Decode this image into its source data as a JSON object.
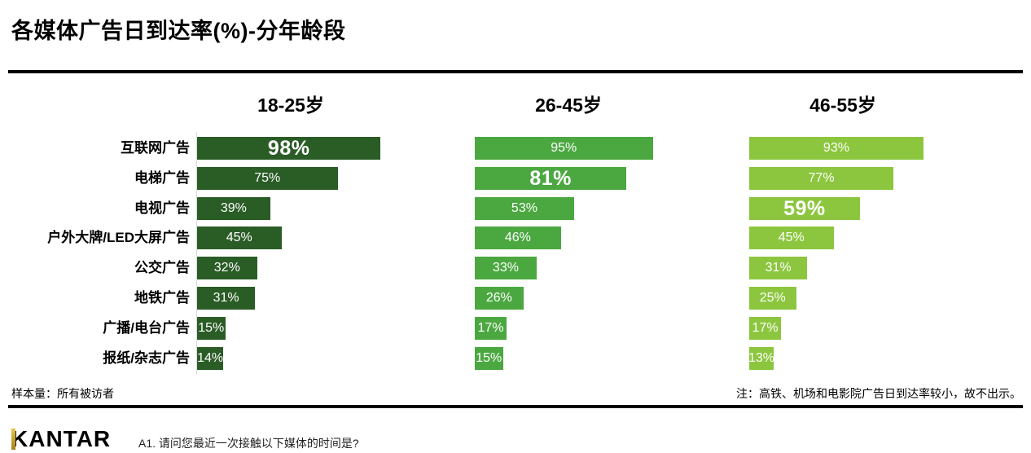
{
  "title": "各媒体广告日到达率(%)-分年龄段",
  "chart_data": {
    "type": "bar",
    "orientation": "horizontal",
    "categories": [
      "互联网广告",
      "电梯广告",
      "电视广告",
      "户外大牌/LED大屏广告",
      "公交广告",
      "地铁广告",
      "广播/电台广告",
      "报纸/杂志广告"
    ],
    "series": [
      {
        "name": "18-25岁",
        "color": "#2a5c26",
        "values": [
          98,
          75,
          39,
          45,
          32,
          31,
          15,
          14
        ],
        "highlight_row": 0
      },
      {
        "name": "26-45岁",
        "color": "#4ba840",
        "values": [
          95,
          81,
          53,
          46,
          33,
          26,
          17,
          15
        ],
        "highlight_row": 1
      },
      {
        "name": "46-55岁",
        "color": "#8cc63e",
        "values": [
          93,
          77,
          59,
          45,
          31,
          25,
          17,
          13
        ],
        "highlight_row": 2
      }
    ],
    "value_suffix": "%",
    "xlim": [
      0,
      100
    ],
    "grid": false,
    "legend_position": "column-headers"
  },
  "footer": {
    "sample_note": "样本量：所有被访者",
    "right_note": "注：高铁、机场和电影院广告日到达率较小，故不出示。",
    "logo": "KANTAR",
    "question": "A1. 请问您最近一次接触以下媒体的时间是?"
  }
}
